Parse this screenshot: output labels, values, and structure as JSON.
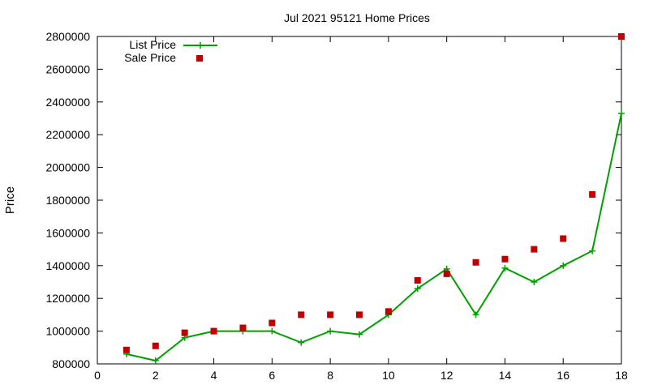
{
  "chart_data": {
    "type": "line",
    "title": "Jul 2021 95121 Home Prices",
    "xlabel": "",
    "ylabel": "Price",
    "xlim": [
      0,
      18
    ],
    "ylim": [
      800000,
      2800000
    ],
    "x_ticks": [
      "0",
      "2",
      "4",
      "6",
      "8",
      "10",
      "12",
      "14",
      "16",
      "18"
    ],
    "y_ticks": [
      "800000",
      "1000000",
      "1200000",
      "1400000",
      "1600000",
      "1800000",
      "2000000",
      "2200000",
      "2400000",
      "2600000",
      "2800000"
    ],
    "grid": false,
    "legend_position": "top-left",
    "x": [
      1,
      2,
      3,
      4,
      5,
      6,
      7,
      8,
      9,
      10,
      11,
      12,
      13,
      14,
      15,
      16,
      17,
      18
    ],
    "series": [
      {
        "name": "List Price",
        "style": "line+cross",
        "color": "#00a000",
        "values": [
          860000,
          820000,
          960000,
          1000000,
          1000000,
          1000000,
          930000,
          1000000,
          980000,
          1100000,
          1260000,
          1380000,
          1100000,
          1385000,
          1300000,
          1400000,
          1490000,
          2330000
        ]
      },
      {
        "name": "Sale Price",
        "style": "square",
        "color": "#c00000",
        "values": [
          885000,
          910000,
          990000,
          1000000,
          1020000,
          1050000,
          1100000,
          1100000,
          1100000,
          1120000,
          1310000,
          1350000,
          1420000,
          1440000,
          1500000,
          1565000,
          1835000,
          2800000
        ]
      }
    ]
  }
}
